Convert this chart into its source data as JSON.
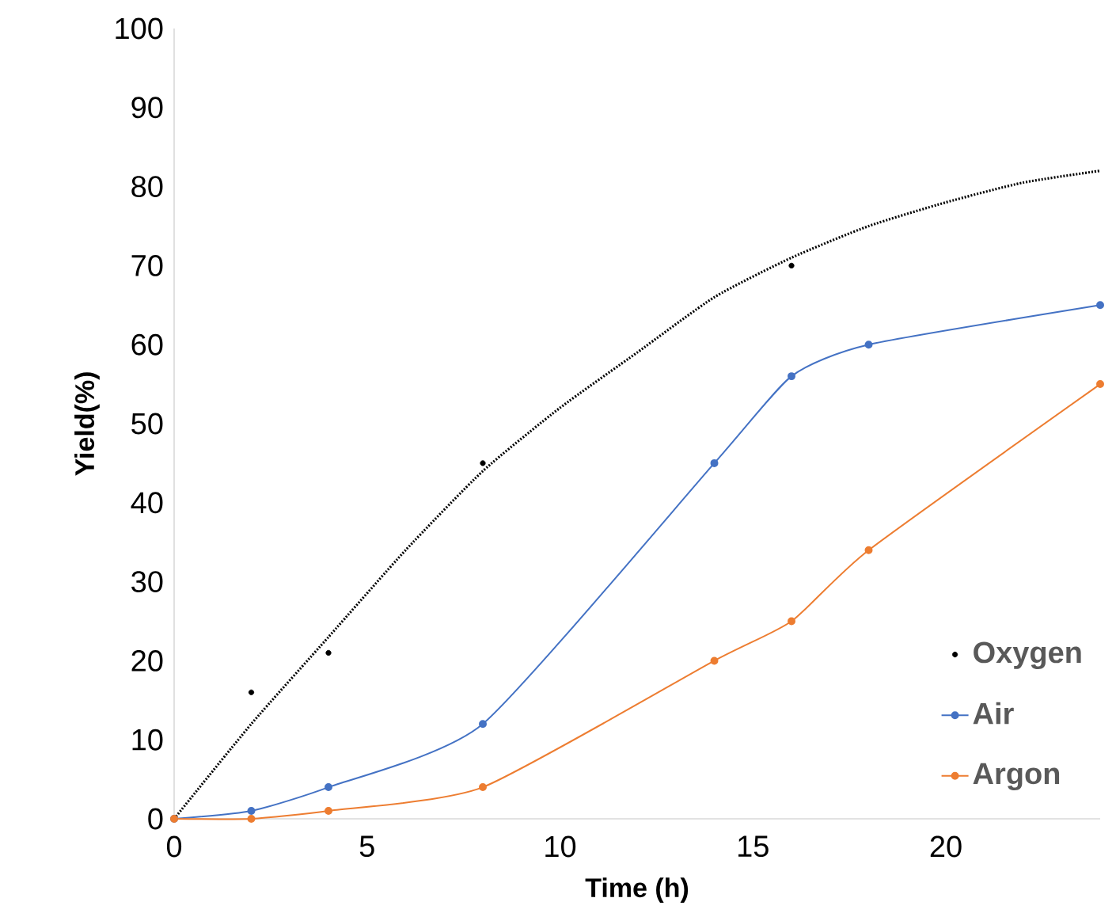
{
  "chart_data": {
    "type": "line",
    "xlabel": "Time (h)",
    "ylabel": "Yield(%)",
    "xlim": [
      0,
      24
    ],
    "ylim": [
      0,
      100
    ],
    "xticks": [
      0,
      5,
      10,
      15,
      20
    ],
    "yticks": [
      0,
      10,
      20,
      30,
      40,
      50,
      60,
      70,
      80,
      90,
      100
    ],
    "grid": false,
    "legend": "bottom right",
    "marker": "circle",
    "series": [
      {
        "name": "Oxygen",
        "type": "scatter",
        "color": "#000000",
        "x": [
          2,
          4,
          8,
          16
        ],
        "values": [
          16,
          21,
          45,
          70
        ]
      },
      {
        "color": "#000000",
        "line_style": "dotted",
        "marker": "none",
        "x": [
          0,
          2,
          4,
          6,
          8,
          10,
          12,
          14,
          16,
          18,
          20,
          22,
          24
        ],
        "values": [
          0,
          12,
          23,
          34,
          44,
          52,
          59,
          66,
          71,
          75,
          78,
          80.5,
          82
        ]
      },
      {
        "name": "Air",
        "color": "#4472c4",
        "x": [
          0,
          2,
          4,
          8,
          14,
          16,
          18,
          24
        ],
        "values": [
          0,
          1,
          4,
          12,
          45,
          56,
          60,
          65
        ]
      },
      {
        "name": "Argon",
        "color": "#ed7d31",
        "x": [
          0,
          2,
          4,
          8,
          14,
          16,
          18,
          24
        ],
        "values": [
          0,
          0,
          1,
          4,
          20,
          25,
          34,
          55
        ]
      }
    ]
  }
}
